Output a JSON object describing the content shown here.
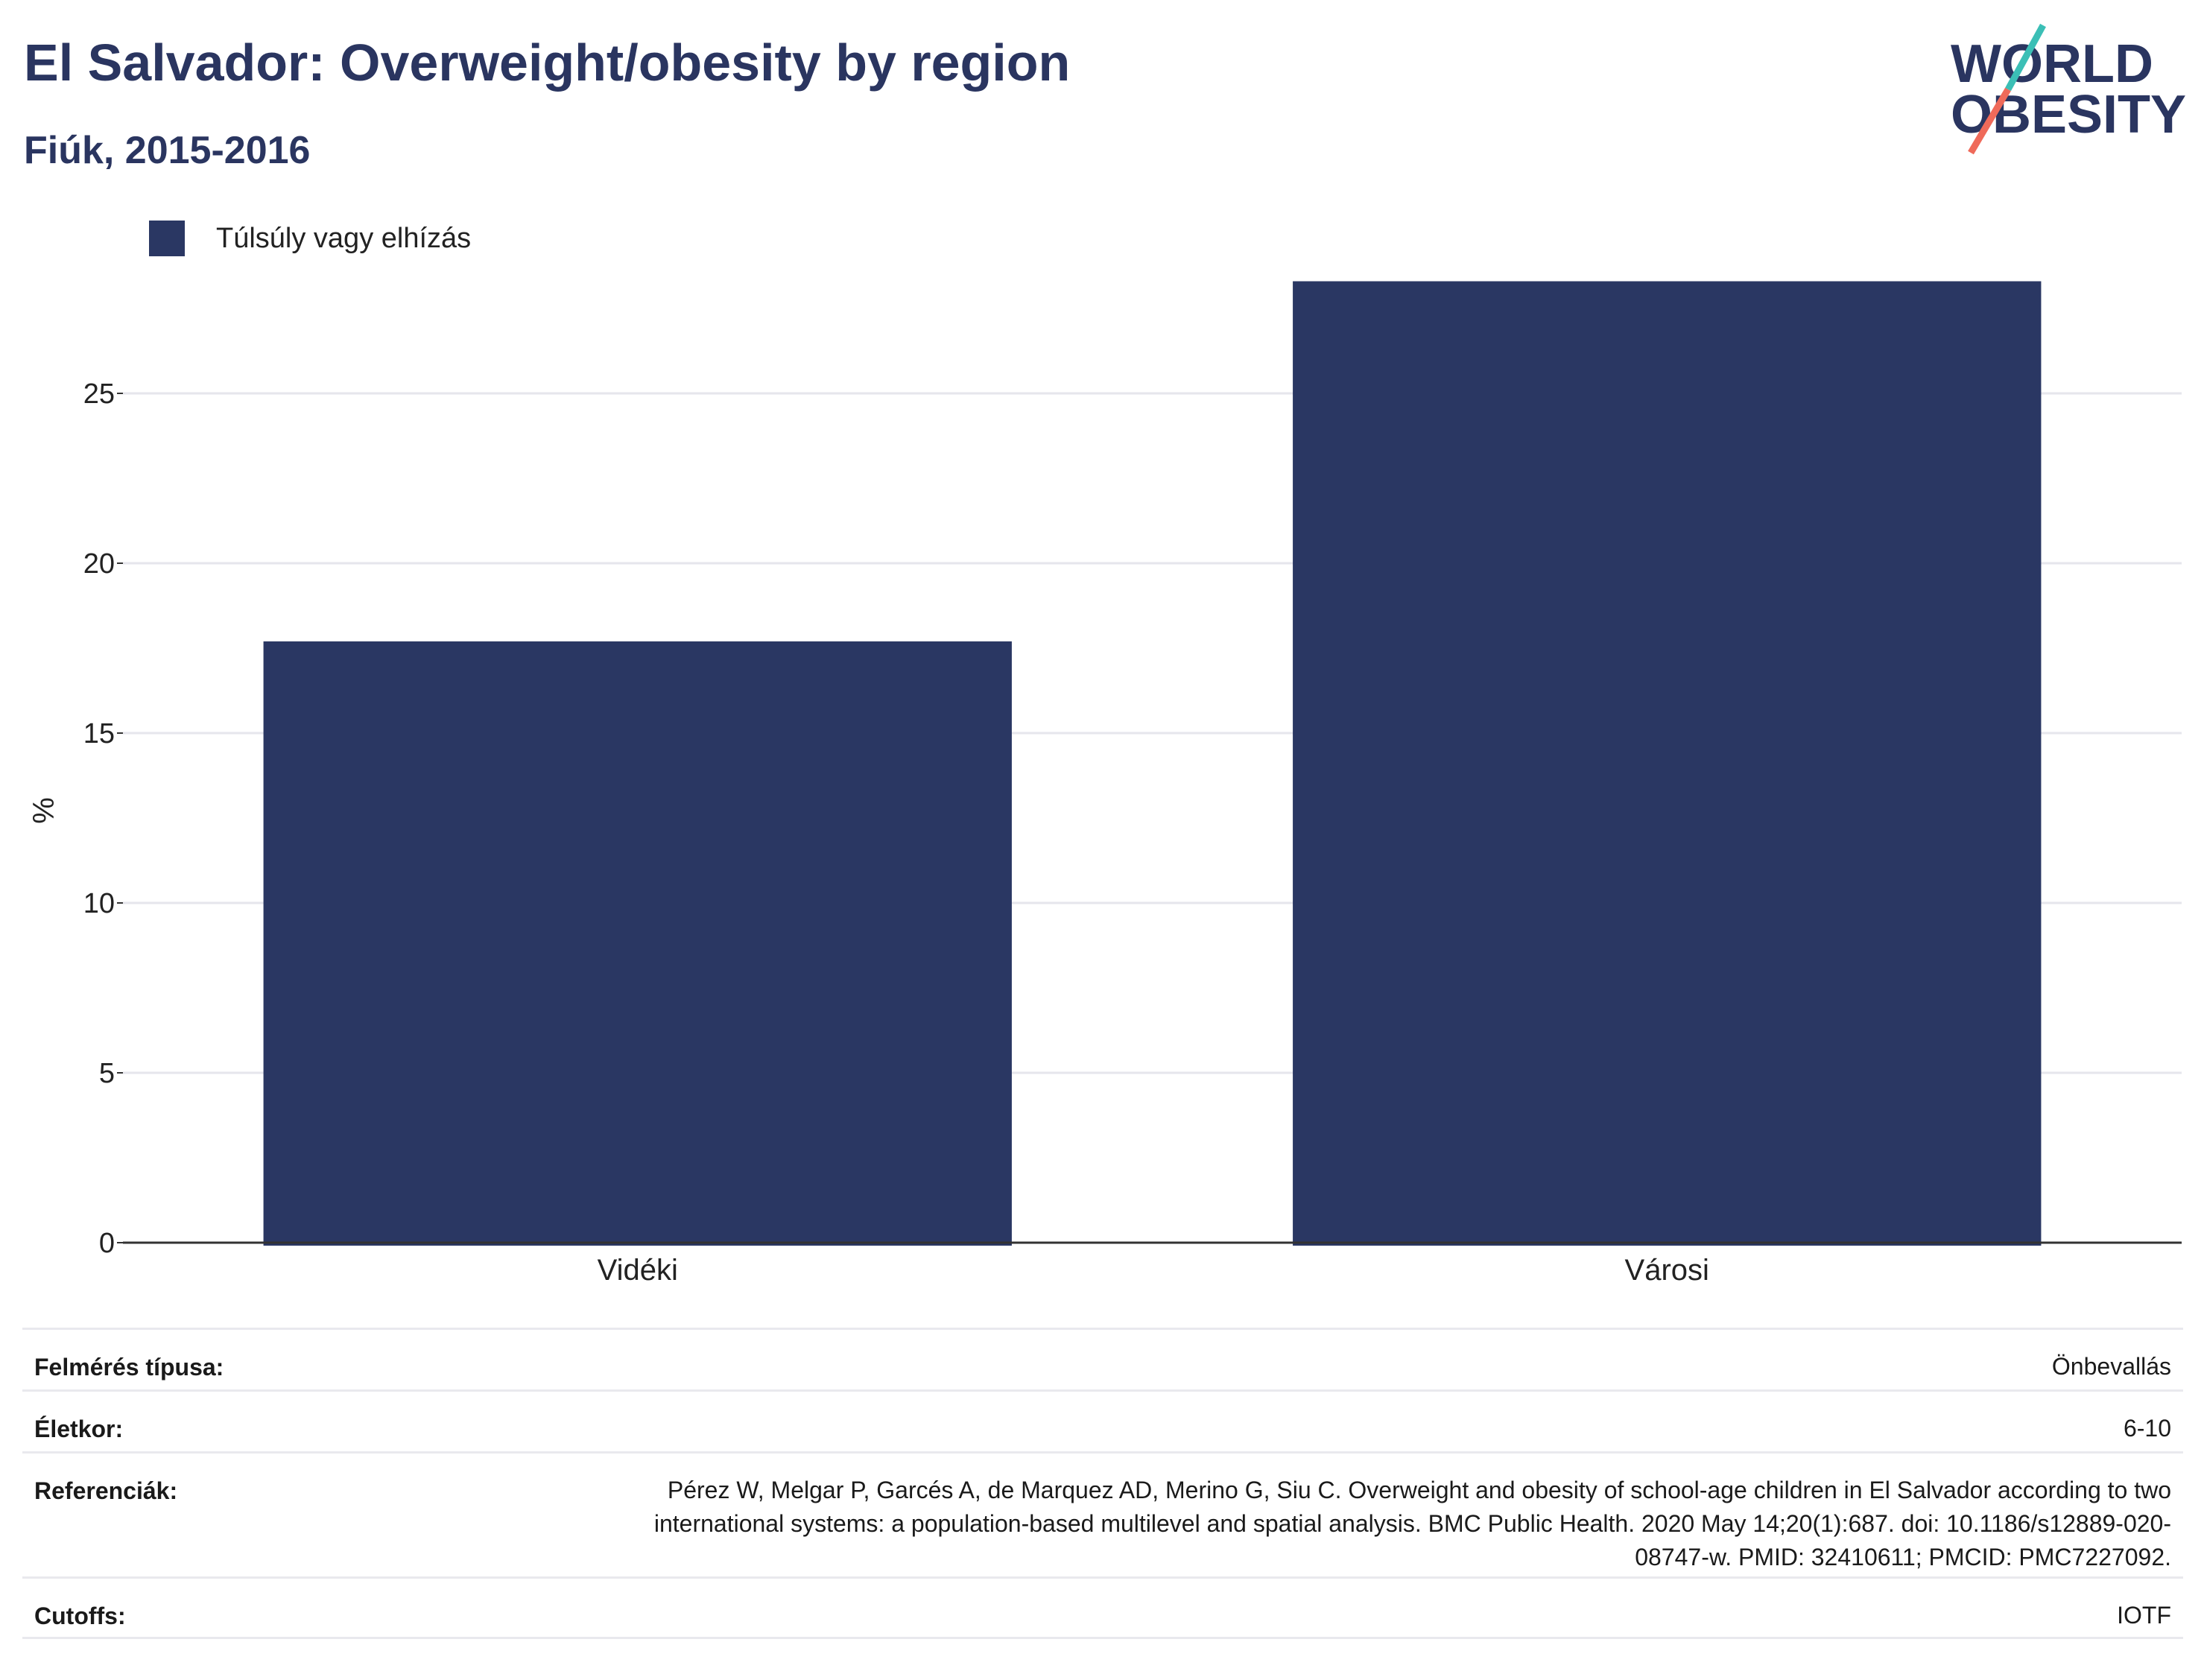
{
  "header": {
    "title": "El Salvador: Overweight/obesity by region",
    "subtitle": "Fiúk, 2015-2016"
  },
  "logo": {
    "line1": "WORLD",
    "line2": "OBESITY"
  },
  "colors": {
    "bar": "#2a3763",
    "title": "#2a3560",
    "grid": "#e6e6ec",
    "axis": "#333333",
    "logo_teal": "#3bbfb6",
    "logo_coral": "#ef6a5a"
  },
  "chart_data": {
    "type": "bar",
    "categories": [
      "Vidéki",
      "Városi"
    ],
    "series": [
      {
        "name": "Túlsúly vagy elhízás",
        "values": [
          17.7,
          28.3
        ]
      }
    ],
    "ylabel": "%",
    "ylim": [
      0,
      30
    ],
    "yticks": [
      0,
      5,
      10,
      15,
      20,
      25
    ],
    "grid": true,
    "legend": "top-left"
  },
  "info": [
    {
      "label": "Felmérés típusa:",
      "value": "Önbevallás"
    },
    {
      "label": "Életkor:",
      "value": "6-10"
    },
    {
      "label": "Referenciák:",
      "value": "Pérez W, Melgar P, Garcés A, de Marquez AD, Merino G, Siu C. Overweight and obesity of school-age children in El Salvador according to two international systems: a population-based multilevel and spatial analysis. BMC Public Health. 2020 May 14;20(1):687. doi: 10.1186/s12889-020-08747-w. PMID: 32410611; PMCID: PMC7227092."
    },
    {
      "label": "Cutoffs:",
      "value": "IOTF"
    }
  ]
}
